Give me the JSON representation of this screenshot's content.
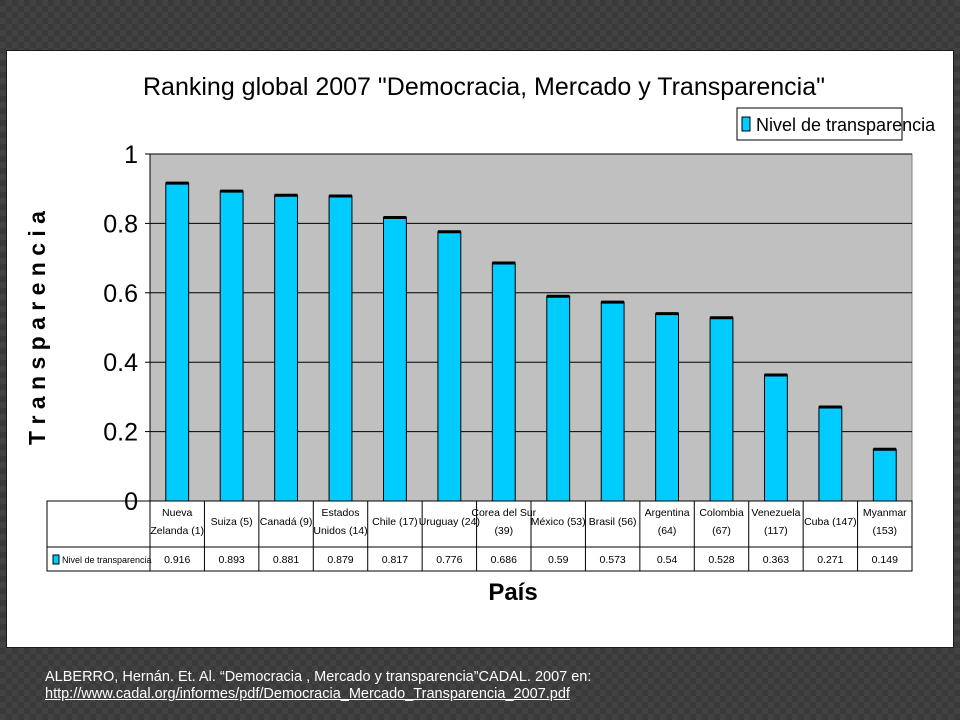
{
  "chart_data": {
    "type": "bar",
    "title": "Ranking global 2007 \"Democracia, Mercado y Transparencia\"",
    "xlabel": "País",
    "ylabel": "T r a n s p a r e n c i a",
    "ylim": [
      0,
      1
    ],
    "y_ticks": [
      "0",
      "0.2",
      "0.4",
      "0.6",
      "0.8",
      "1"
    ],
    "grid": true,
    "legend_position": "top-right",
    "categories": [
      [
        "Nueva",
        "Zelanda (1)"
      ],
      [
        "Suiza (5)"
      ],
      [
        "Canadá (9)"
      ],
      [
        "Estados",
        "Unidos (14)"
      ],
      [
        "Chile (17)"
      ],
      [
        "Uruguay (24)"
      ],
      [
        "Corea del Sur",
        "(39)"
      ],
      [
        "México (53)"
      ],
      [
        "Brasil (56)"
      ],
      [
        "Argentina",
        "(64)"
      ],
      [
        "Colombia",
        "(67)"
      ],
      [
        "Venezuela",
        "(117)"
      ],
      [
        "Cuba (147)"
      ],
      [
        "Myanmar",
        "(153)"
      ]
    ],
    "series": [
      {
        "name": "Nivel de transparencia",
        "values": [
          0.916,
          0.893,
          0.881,
          0.879,
          0.817,
          0.776,
          0.686,
          0.59,
          0.573,
          0.54,
          0.528,
          0.363,
          0.271,
          0.149
        ],
        "value_labels": [
          "0.916",
          "0.893",
          "0.881",
          "0.879",
          "0.817",
          "0.776",
          "0.686",
          "0.59",
          "0.573",
          "0.54",
          "0.528",
          "0.363",
          "0.271",
          "0.149"
        ]
      }
    ],
    "colors": {
      "bar_fill": "#00ccff",
      "bar_stroke": "#000000",
      "plot_background": "#c0c0c0",
      "gridline": "#000000"
    }
  },
  "citation": {
    "text": "ALBERRO, Hernán. Et. Al. “Democracia , Mercado y transparencia”CADAL. 2007 en:",
    "link": "http://www.cadal.org/informes/pdf/Democracia_Mercado_Transparencia_2007.pdf"
  }
}
